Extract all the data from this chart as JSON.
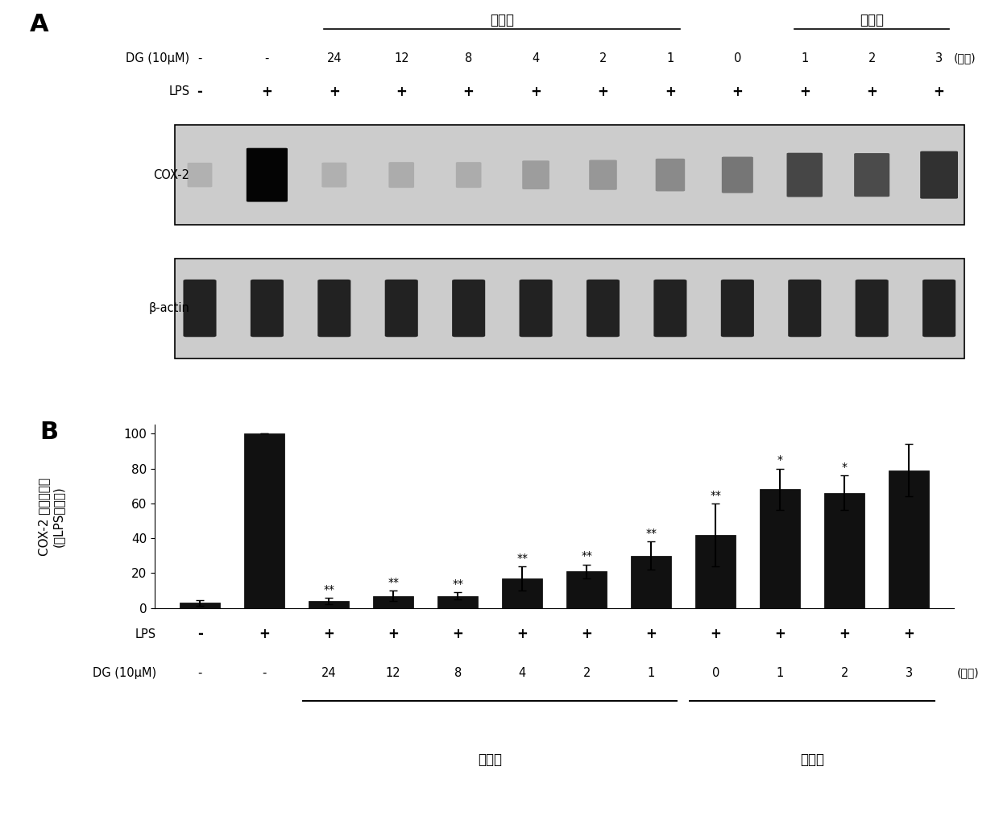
{
  "panel_a_label": "A",
  "panel_b_label": "B",
  "pretreatment_label": "预处理",
  "posttreatment_label": "后处理",
  "dg_label": "DG (10μM)",
  "lps_label": "LPS",
  "hours_label": "(小时)",
  "cox2_label": "COX-2",
  "bactin_label": "β-actin",
  "ylabel_line1": "COX-2 表达百分率",
  "ylabel_line2": "(与LPS组相比)",
  "dg_values": [
    "-",
    "-",
    "24",
    "12",
    "8",
    "4",
    "2",
    "1",
    "0",
    "1",
    "2",
    "3"
  ],
  "lps_values": [
    "-",
    "+",
    "+",
    "+",
    "+",
    "+",
    "+",
    "+",
    "+",
    "+",
    "+",
    "+"
  ],
  "bar_heights": [
    3,
    100,
    4,
    7,
    7,
    17,
    21,
    30,
    42,
    68,
    66,
    79
  ],
  "bar_errors": [
    1.5,
    0,
    2,
    3,
    2,
    7,
    4,
    8,
    18,
    12,
    10,
    15
  ],
  "significance": [
    "",
    "",
    "**",
    "**",
    "**",
    "**",
    "**",
    "**",
    "**",
    "*",
    "*",
    ""
  ],
  "bar_color": "#111111",
  "background_color": "#ffffff",
  "ylim": [
    0,
    105
  ],
  "yticks": [
    0,
    20,
    40,
    60,
    80,
    100
  ],
  "cox2_intensities": [
    0.03,
    1.0,
    0.04,
    0.07,
    0.07,
    0.17,
    0.21,
    0.3,
    0.42,
    0.68,
    0.66,
    0.79
  ]
}
